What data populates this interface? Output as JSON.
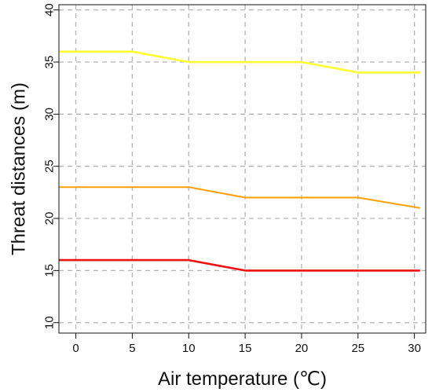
{
  "chart_data": {
    "type": "line",
    "title": "",
    "xlabel": "Air temperature (℃)",
    "ylabel": "Threat distances (m)",
    "xlim": [
      -1.5,
      31
    ],
    "ylim": [
      9,
      40.5
    ],
    "xticks": [
      0,
      5,
      10,
      15,
      20,
      25,
      30
    ],
    "yticks": [
      10,
      15,
      20,
      25,
      30,
      35,
      40
    ],
    "grid": true,
    "legend": "none",
    "series": [
      {
        "color": "#ffff33",
        "x": [
          -1.5,
          5,
          10,
          15,
          20,
          25,
          30.5
        ],
        "y": [
          36,
          36,
          35,
          35,
          35,
          34,
          34
        ]
      },
      {
        "color": "#ff9f00",
        "x": [
          -1.5,
          5,
          10,
          15,
          20,
          25,
          30.5
        ],
        "y": [
          23,
          23,
          23,
          22,
          22,
          22,
          21
        ]
      },
      {
        "color": "#ee1111",
        "x": [
          -1.5,
          5,
          10,
          15,
          20,
          25,
          30.5
        ],
        "y": [
          16,
          16,
          16,
          15,
          15,
          15,
          15
        ]
      }
    ]
  }
}
